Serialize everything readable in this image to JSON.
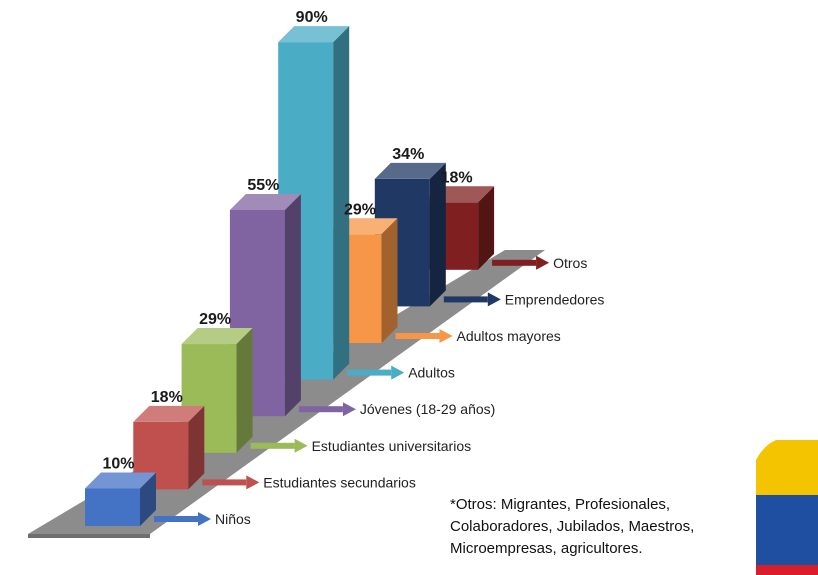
{
  "colors": {
    "floor": "#8c8c8c",
    "floor_side": "#6e6e6e",
    "label_text": "#222222",
    "value_text": "#1a1a1a"
  },
  "chart_data": {
    "type": "bar",
    "categories": [
      "Niños",
      "Estudiantes secundarios",
      "Estudiantes universitarios",
      "Jóvenes (18-29 años)",
      "Adultos",
      "Adultos mayores",
      "Emprendedores",
      "Otros"
    ],
    "values": [
      10,
      18,
      29,
      55,
      90,
      29,
      34,
      18
    ],
    "value_labels": [
      "10%",
      "18%",
      "29%",
      "55%",
      "90%",
      "29%",
      "34%",
      "18%"
    ],
    "colors": [
      "#4472c4",
      "#c0504d",
      "#9bbb59",
      "#8064a2",
      "#4bacc6",
      "#f79646",
      "#1f3864",
      "#7f1f1f"
    ],
    "style": "3d-diagonal-bars",
    "title": "",
    "xlabel": "",
    "ylabel": ""
  },
  "footnote": {
    "lines": [
      "*Otros: Migrantes, Profesionales,",
      "Colaboradores, Jubilados, Maestros,",
      "Microempresas, agricultores."
    ]
  },
  "decoration": {
    "flag_colors": [
      "#f5c400",
      "#1f4fa0",
      "#d81e2a"
    ]
  }
}
